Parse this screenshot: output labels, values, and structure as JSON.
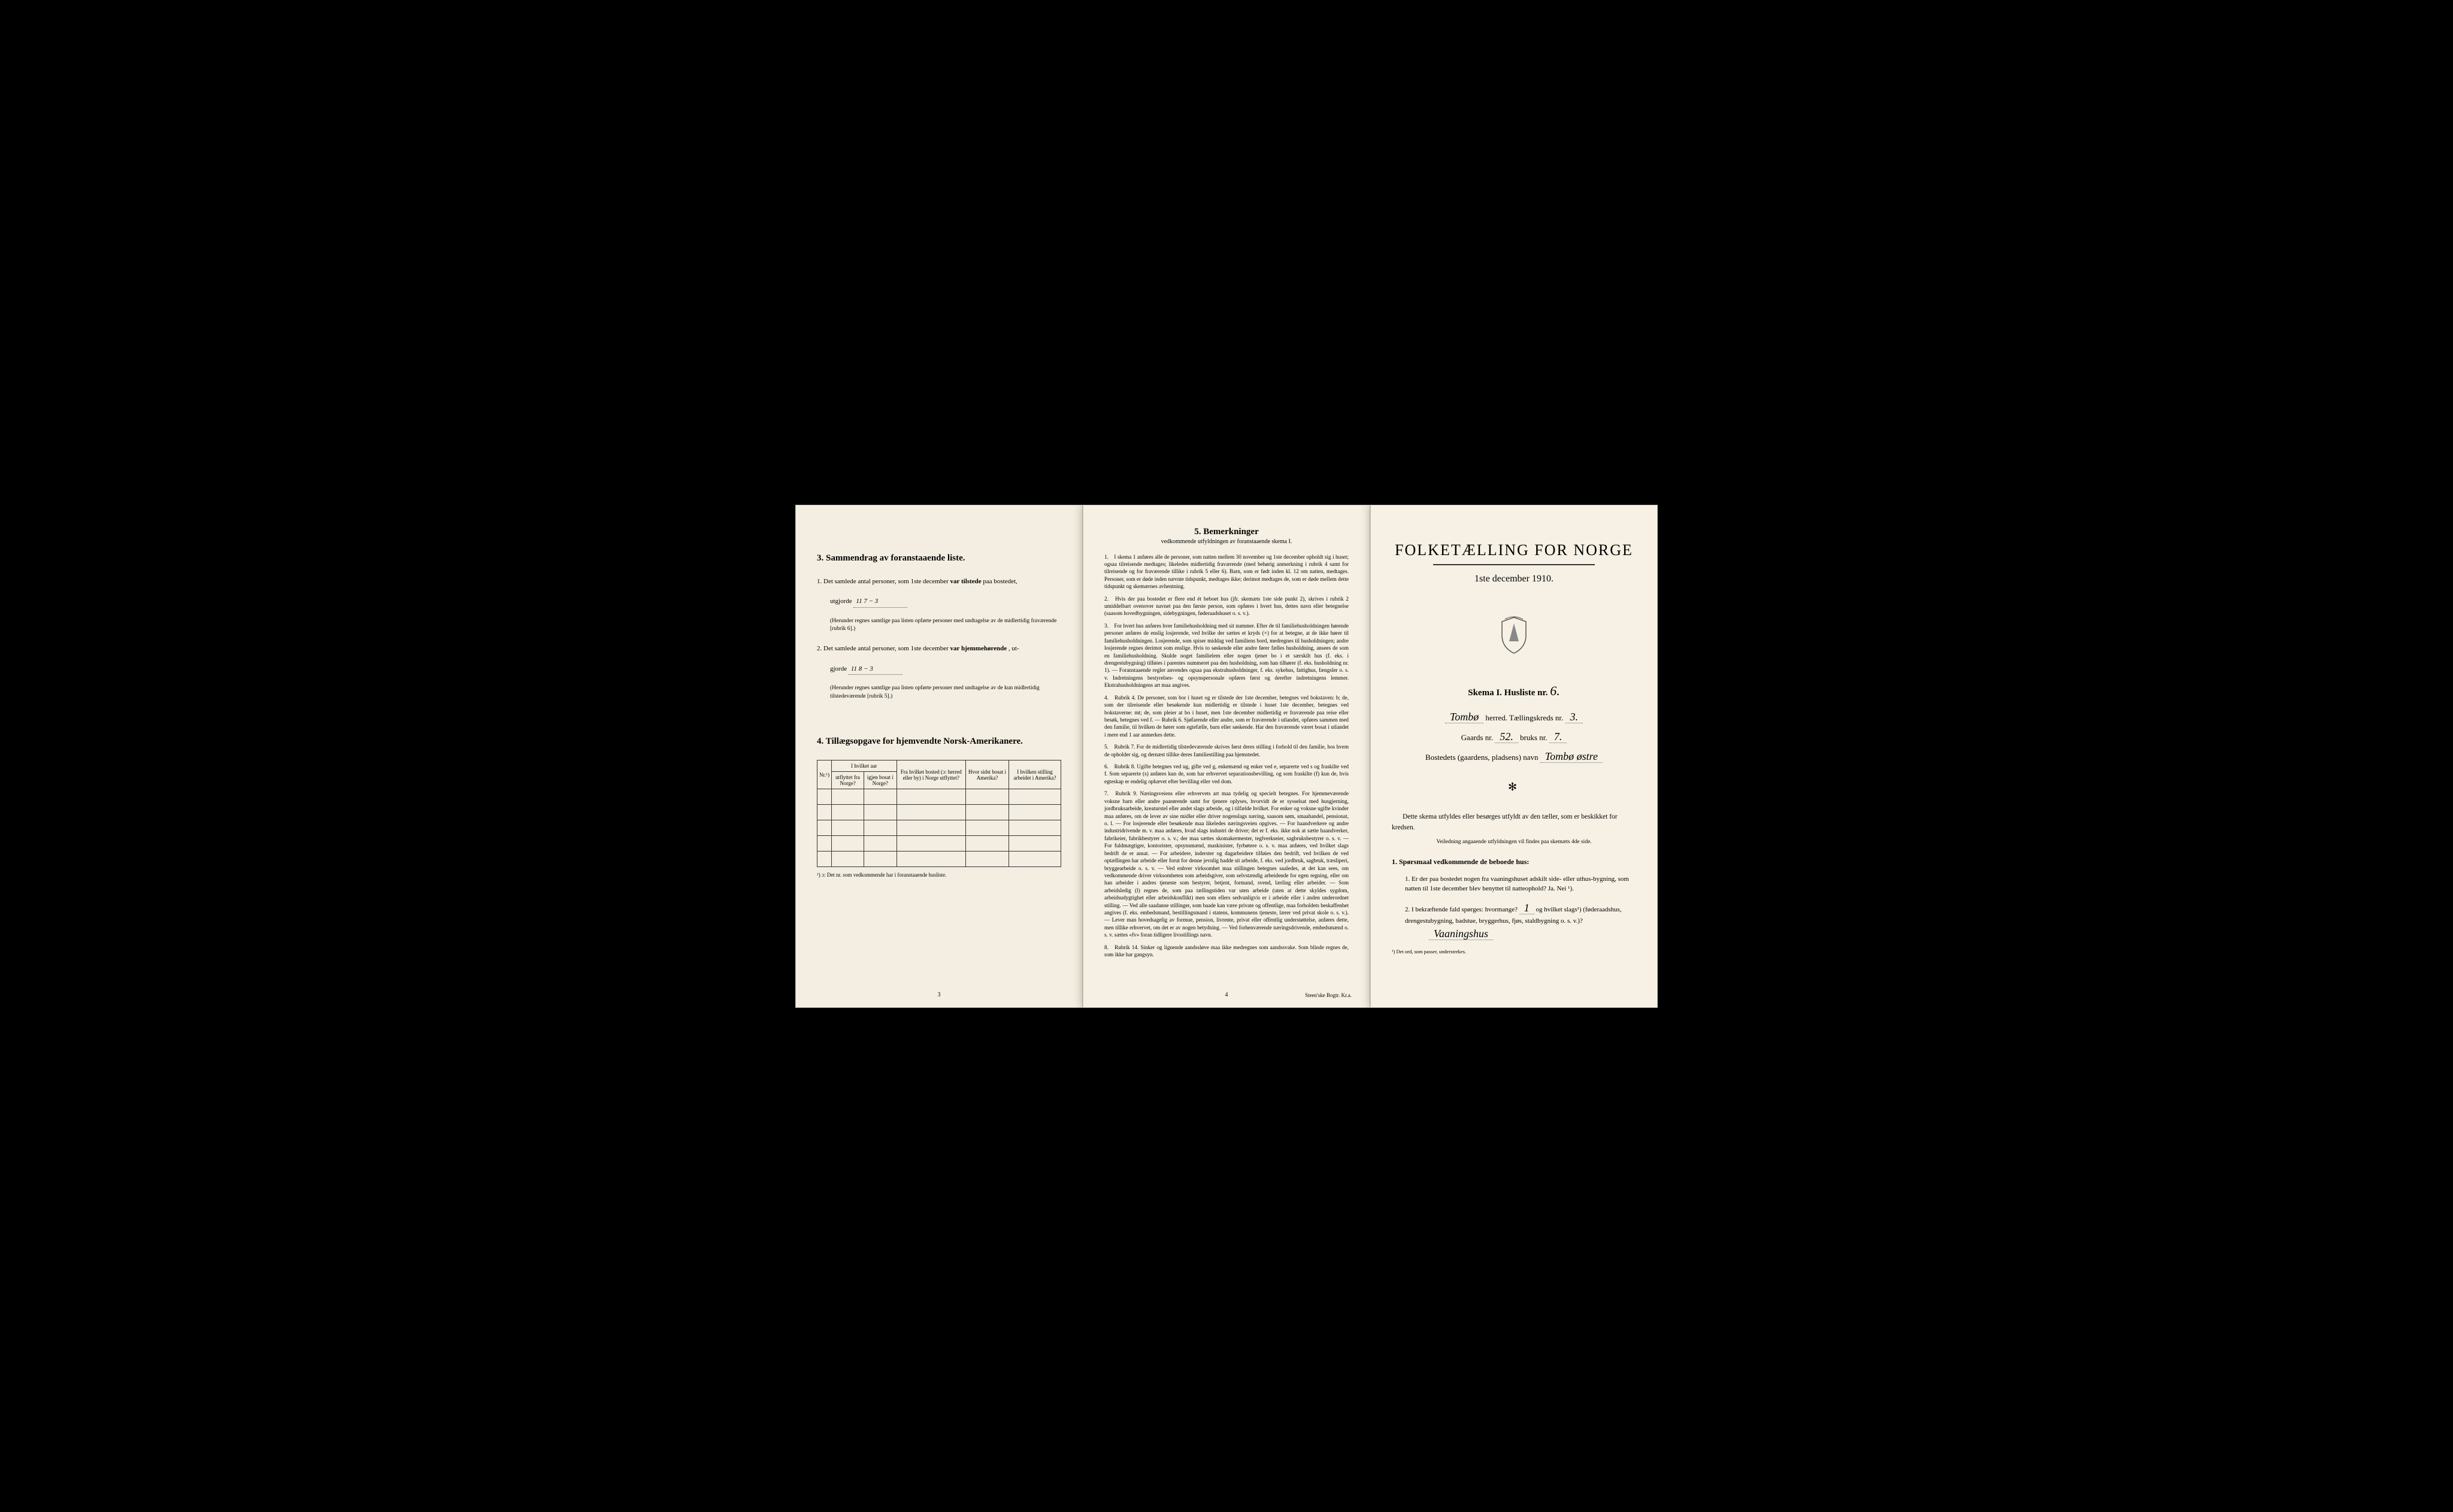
{
  "page1": {
    "section3_title": "3.  Sammendrag av foranstaaende liste.",
    "item1_text_a": "1.  Det samlede antal personer, som 1ste december ",
    "item1_bold": "var tilstede",
    "item1_text_b": " paa bostedet,",
    "item1_utgjorde": "utgjorde",
    "item1_value": "11   7 − 3",
    "item1_note": "(Herunder regnes samtlige paa listen opførte personer med undtagelse av de midlertidig fraværende [rubrik 6].)",
    "item2_text_a": "2.  Det samlede antal personer, som 1ste december ",
    "item2_bold": "var hjemmehørende",
    "item2_text_b": ", ut-",
    "item2_gjorde": "gjorde",
    "item2_value": "11   8 − 3",
    "item2_note": "(Herunder regnes samtlige paa listen opførte personer med undtagelse av de kun midlertidig tilstedeværende [rubrik 5].)",
    "section4_title": "4.  Tillægsopgave for hjemvendte Norsk-Amerikanere.",
    "table_headers": {
      "nr": "Nr.¹)",
      "aar": "I hvilket aar",
      "utflyttet": "utflyttet fra Norge?",
      "igjen": "igjen bosat i Norge?",
      "bosted": "Fra hvilket bosted (ɔ: herred eller by) i Norge utflyttet?",
      "hvor": "Hvor sidst bosat i Amerika?",
      "stilling": "I hvilken stilling arbeidet i Amerika?"
    },
    "footnote": "¹) ɔ: Det nr. som vedkommende har i foranstaaende husliste.",
    "page_num": "3"
  },
  "page2": {
    "title": "5.  Bemerkninger",
    "subtitle": "vedkommende utfyldningen av foranstaaende skema I.",
    "items": [
      "I skema 1 anføres alle de personer, som natten mellem 30 november og 1ste december opholdt sig i huset; ogsaa tilreisende medtages; likeledes midlertidig fraværende (med behørig anmerkning i rubrik 4 samt for tilreisende og for fraværende tillike i rubrik 5 eller 6). Barn, som er født inden kl. 12 om natten, medtages. Personer, som er døde inden nævnte tidspunkt, medtages ikke; derimot medtages de, som er døde mellem dette tidspunkt og skemærnes avhentning.",
      "Hvis der paa bostedet er flere end ét beboet hus (jfr. skemæts 1ste side punkt 2), skrives i rubrik 2 umiddelbart ovenover navnet paa den første person, som opføres i hvert hus, dettes navn eller betegnelse (saasom hovedbygningen, sidebygningen, føderaadshuset o. s. v.).",
      "For hvert hus anføres hver familiehusholdning med sit nummer. Efter de til familiehusholdningen hørende personer anføres de enslig losjerende, ved hvilke der sættes et kryds (×) for at betegne, at de ikke hører til familiehusholdningen. Losjerende, som spiser middag ved familiens bord, medregnes til husholdningen; andre losjerende regnes derimot som enslige. Hvis to søskende eller andre fører fælles husholdning, ansees de som en familiehusholdning. Skulde noget familielem eller nogen tjener bo i et særskilt hus (f. eks. i drengestubygning) tilføies i parentes nummeret paa den husholdning, som han tilhører (f. eks. husholdning nr. 1). — Foranstaaende regler anvendes ogsaa paa ekstrahusholdninger, f. eks. sykehus, fattighus, fængsler o. s. v. Indretningens bestyrelses- og opsynspersonale opføres først og derefter indretningens lemmer. Ekstrahusholdningens art maa angives.",
      "Rubrik 4. De personer, som bor i huset og er tilstede der 1ste december, betegnes ved bokstaven: b; de, som der tilreisende eller besøkende kun midlertidig er tilstede i huset 1ste december, betegnes ved bokstaverne: mt; de, som pleier at bo i huset, men 1ste december midlertidig er fraværende paa reise eller besøk, betegnes ved f. — Rubrik 6. Sjøfarende eller andre, som er fraværende i utlandet, opføres sammen med den familie, til hvilken de hører som egtefælle, barn eller søskende. Har den fraværende været bosat i utlandet i mere end 1 aar anmerkes dette.",
      "Rubrik 7. For de midlertidig tilstedeværende skrives først deres stilling i forhold til den familie, hos hvem de opholder sig, og dernæst tillike deres familiestilling paa hjemstedet.",
      "Rubrik 8. Ugifte betegnes ved ug, gifte ved g, enkemænd og enker ved e, separerte ved s og fraskilte ved f. Som separerte (s) anføres kun de, som har erhvervet separationsbevilling, og som fraskilte (f) kun de, hvis egteskap er endelig ophævet efter bevilling eller ved dom.",
      "Rubrik 9. Næringsveiens eller erhvervets art maa tydelig og specielt betegnes. For hjemmeværende voksne barn eller andre paarørende samt for tjenere oplyses, hvorvidt de er sysselsat med husgjerning, jordbruksarbeide, kreaturstel eller andet slags arbeide, og i tilfælde hvilket. For enker og voksne ugifte kvinder maa anføres, om de lever av sine midler eller driver nogenslags næring, saasom søm, smaahandel, pensionat, o. l. — For losjerende eller besøkende maa likeledes næringsveien opgives. — For haandverkere og andre industridrivende m. v. maa anføres, hvad slags industri de driver; det er f. eks. ikke nok at sætte haandverker, fabrikeier, fabrikbestyrer o. s. v.; der maa sættes skomakermester, teglverkseier, sagbruksbestyrer o. s. v. — For fuldmægtiger, kontorister, opsynsmænd, maskinister, fyrbøtere o. s. v. maa anføres, ved hvilket slags bedrift de er ansat. — For arbeidere, inderster og dagarbeidere tilføies den bedrift, ved hvilken de ved optællingen har arbeide eller forut for denne jevnlig hadde sit arbeide, f. eks. ved jordbruk, sagbruk, træsliperi, bryggearbeide o. s. v. — Ved enhver virksomhet maa stillingen betegnes saaledes, at det kan sees, om vedkommende driver virksomheten som arbeidsgiver, som selvstændig arbeidende for egen regning, eller om han arbeider i andres tjeneste som bestyrer, betjent, formand, svend, lærling eller arbeider. — Som arbeidsledig (l) regnes de, som paa tællingstiden var uten arbeide (uten at dette skyldes sygdom, arbeidsudygtighet eller arbeidskonflikt) men som ellers sedvanligvis er i arbeide eller i anden underordnet stilling. — Ved alle saadanne stillinger, som baade kan være private og offentlige, maa forholdets beskaffenhet angives (f. eks. embedsmand, bestillingsmand i statens, kommunens tjeneste, lærer ved privat skole o. s. v.). — Lever man hovedsagelig av formue, pension, livrente, privat eller offentlig understøttelse, anføres dette, men tillike erhvervet, om det er av nogen betydning. — Ved forhenværende næringsdrivende, embedsmænd o. s. v. sættes «fv» foran tidligere livsstillings navn.",
      "Rubrik 14. Sinker og lignende aandssløve maa ikke medregnes som aandssvake. Som blinde regnes de, som ikke har gangsyn."
    ],
    "page_num": "4",
    "printer": "Steen'ske Bogtr.   Kr.a."
  },
  "page3": {
    "main_title": "FOLKETÆLLING FOR NORGE",
    "date": "1ste december 1910.",
    "skema_label": "Skema I.   Husliste nr.",
    "skema_nr": "6.",
    "herred_value": "Tombø",
    "herred_label": " herred.   Tællingskreds nr. ",
    "kreds_nr": "3.",
    "gaards_label": "Gaards nr. ",
    "gaards_nr": "52.",
    "bruks_label": "  bruks nr. ",
    "bruks_nr": "7.",
    "bosted_label": "Bostedets (gaardens, pladsens) navn ",
    "bosted_value": "Tombø østre",
    "lead": "Dette skema utfyldes eller besørges utfyldt av den tæller, som er beskikket for kredsen.",
    "veil": "Veiledning angaaende utfyldningen vil findes paa skemæts 4de side.",
    "q_head": "1. Spørsmaal vedkommende de beboede hus:",
    "q1": "1. Er der paa bostedet nogen fra vaaningshuset adskilt side- eller uthus-bygning, som natten til 1ste december blev benyttet til natteophold?  Ja.  Nei ¹).",
    "q2_a": "2. I bekræftende fald spørges: hvormange? ",
    "q2_val": "1",
    "q2_b": " og hvilket slags¹) (føderaadshus, drengestubygning, badstue, bryggerhus, fjøs, staldbygning o. s. v.)?",
    "q2_answer": "Vaaningshus",
    "foot": "¹) Det ord, som passer, understrekes."
  }
}
